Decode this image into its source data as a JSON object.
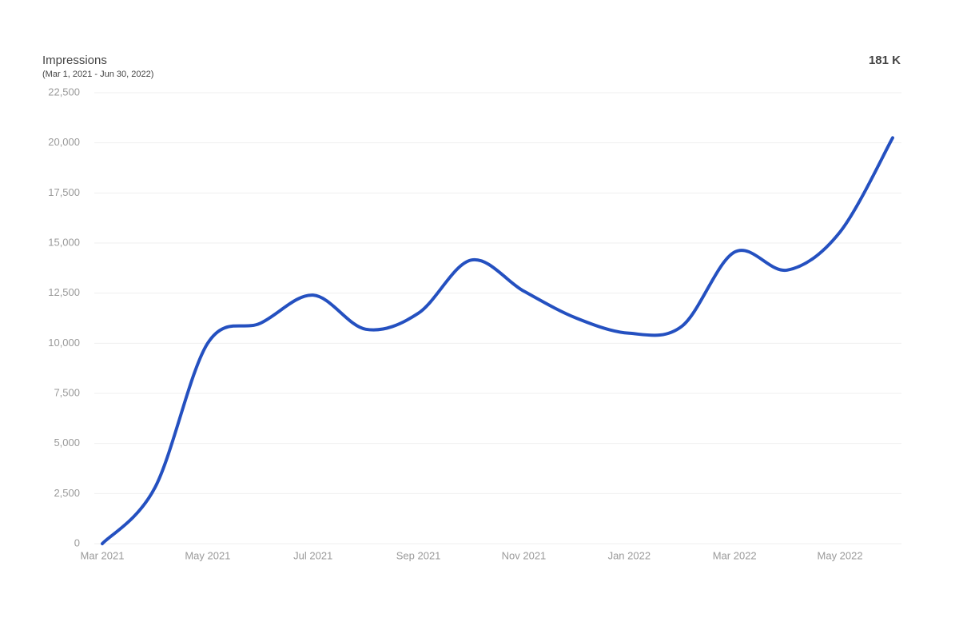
{
  "chart_data": {
    "type": "line",
    "title": "Impressions",
    "subtitle": "(Mar 1, 2021 - Jun 30, 2022)",
    "total": "181 K",
    "categories": [
      "Mar 2021",
      null,
      "May 2021",
      null,
      "Jul 2021",
      null,
      "Sep 2021",
      null,
      "Nov 2021",
      null,
      "Jan 2022",
      null,
      "Mar 2022",
      null,
      "May 2022",
      null
    ],
    "series": [
      {
        "name": "Impressions",
        "color": "#2450c0",
        "values": [
          0,
          2800,
          10000,
          11000,
          12400,
          10700,
          11500,
          14150,
          12600,
          11250,
          10500,
          10850,
          14550,
          13650,
          15550,
          20250
        ]
      }
    ],
    "ylim": [
      0,
      22500
    ],
    "yticks": [
      0,
      {
        "value": 2500,
        "label": "2,500"
      },
      {
        "value": 5000,
        "label": "5,000"
      },
      {
        "value": 7500,
        "label": "7,500"
      },
      {
        "value": 10000,
        "label": "10,000"
      },
      {
        "value": 12500,
        "label": "12,500"
      },
      {
        "value": 15000,
        "label": "15,000"
      },
      {
        "value": 17500,
        "label": "17,500"
      },
      {
        "value": 20000,
        "label": "20,000"
      },
      {
        "value": 22500,
        "label": "22,500"
      }
    ],
    "grid": true,
    "smooth": true
  }
}
